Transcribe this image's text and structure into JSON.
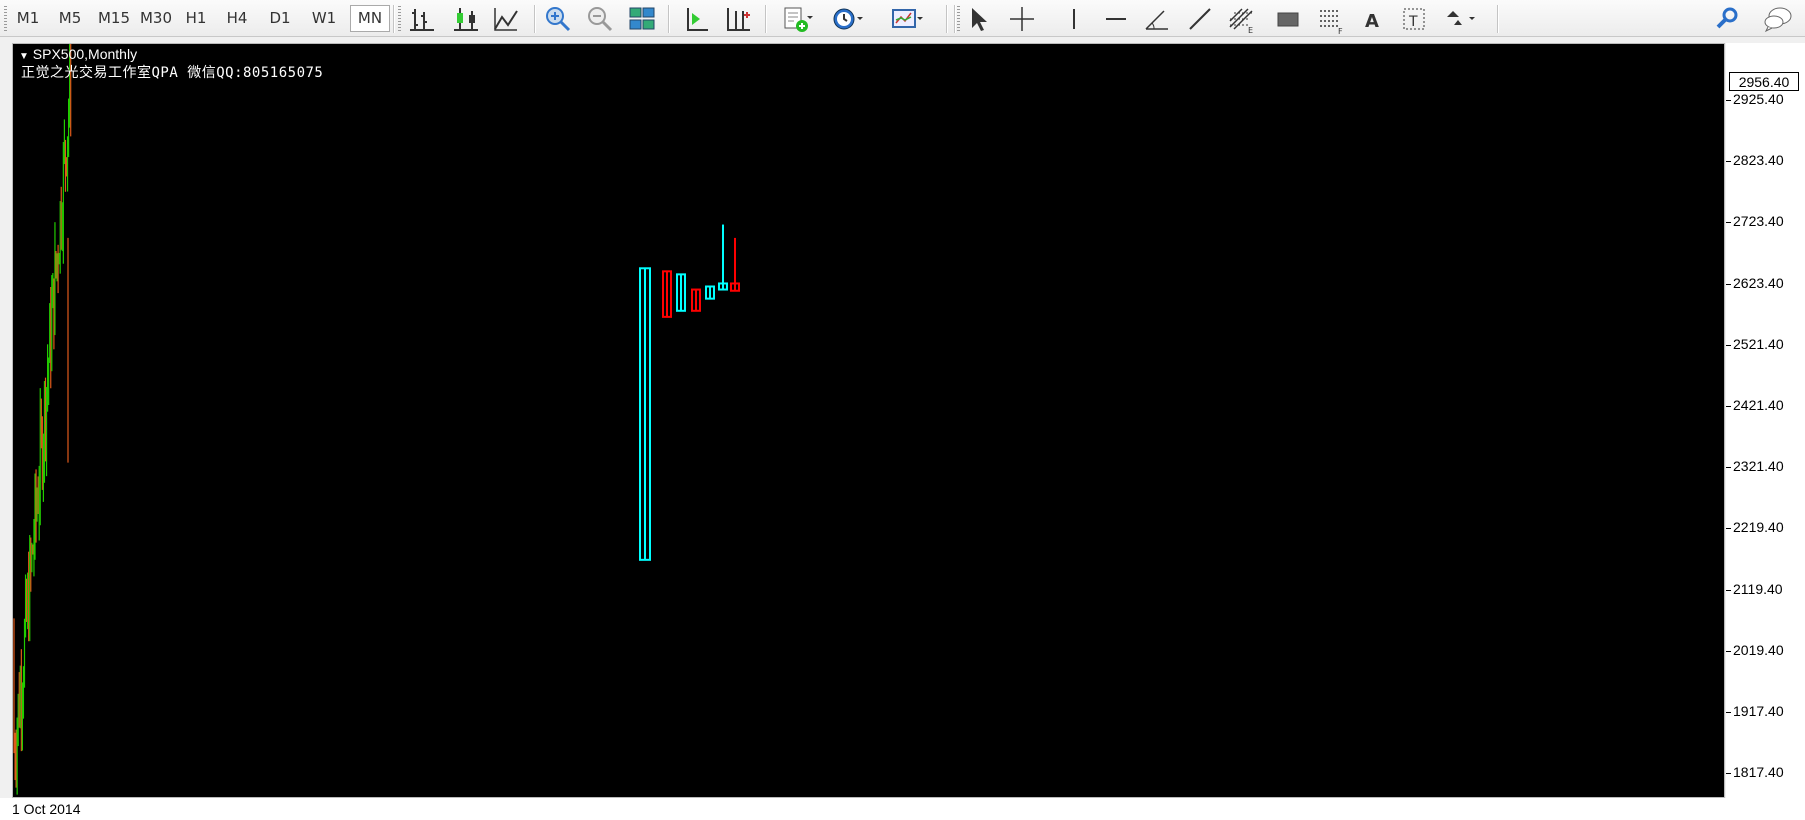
{
  "toolbar": {
    "timeframes": [
      "M1",
      "M5",
      "M15",
      "M30",
      "H1",
      "H4",
      "D1",
      "W1",
      "MN"
    ],
    "active_timeframe": "MN",
    "icons": [
      "bar-chart-icon",
      "candlestick-icon",
      "line-chart-icon",
      "zoom-in-icon",
      "zoom-out-icon",
      "tile-windows-icon",
      "auto-scroll-icon",
      "chart-shift-icon",
      "new-order-icon",
      "periods-clock-icon",
      "templates-icon",
      "cursor-icon",
      "crosshair-icon",
      "vertical-line-icon",
      "horizontal-line-icon",
      "angle-line-icon",
      "trend-line-icon",
      "fibonacci-icon",
      "rectangle-icon",
      "fibo-fan-icon",
      "text-icon",
      "text-label-icon",
      "arrows-icon",
      "search-icon",
      "chat-icon"
    ]
  },
  "chart": {
    "title": "SPX500,Monthly",
    "subtitle": "正觉之光交易工作室QPA 微信QQ:805165075",
    "current_price": "2956.40",
    "price_ticks": [
      "2925.40",
      "2823.40",
      "2723.40",
      "2623.40",
      "2521.40",
      "2421.40",
      "2321.40",
      "2219.40",
      "2119.40",
      "2019.40",
      "1917.40",
      "1817.40"
    ],
    "time_label": "1 Oct 2014",
    "colors": {
      "background": "#000000",
      "bull": "#00ffff",
      "bear": "#ff0000",
      "history_up": "#22cc00",
      "history_down": "#e05a1a"
    }
  },
  "chart_data": {
    "type": "candlestick",
    "symbol": "SPX500",
    "timeframe": "Monthly",
    "ylim": [
      1780,
      2990
    ],
    "candles": [
      {
        "o": 2170,
        "h": 2650,
        "l": 2170,
        "c": 2650
      },
      {
        "o": 2645,
        "h": 2645,
        "l": 2570,
        "c": 2570
      },
      {
        "o": 2580,
        "h": 2640,
        "l": 2580,
        "c": 2640
      },
      {
        "o": 2615,
        "h": 2615,
        "l": 2580,
        "c": 2580
      },
      {
        "o": 2600,
        "h": 2620,
        "l": 2600,
        "c": 2620
      },
      {
        "o": 2615,
        "h": 2722,
        "l": 2615,
        "c": 2625
      },
      {
        "o": 2625,
        "h": 2700,
        "l": 2613,
        "c": 2613
      }
    ]
  }
}
